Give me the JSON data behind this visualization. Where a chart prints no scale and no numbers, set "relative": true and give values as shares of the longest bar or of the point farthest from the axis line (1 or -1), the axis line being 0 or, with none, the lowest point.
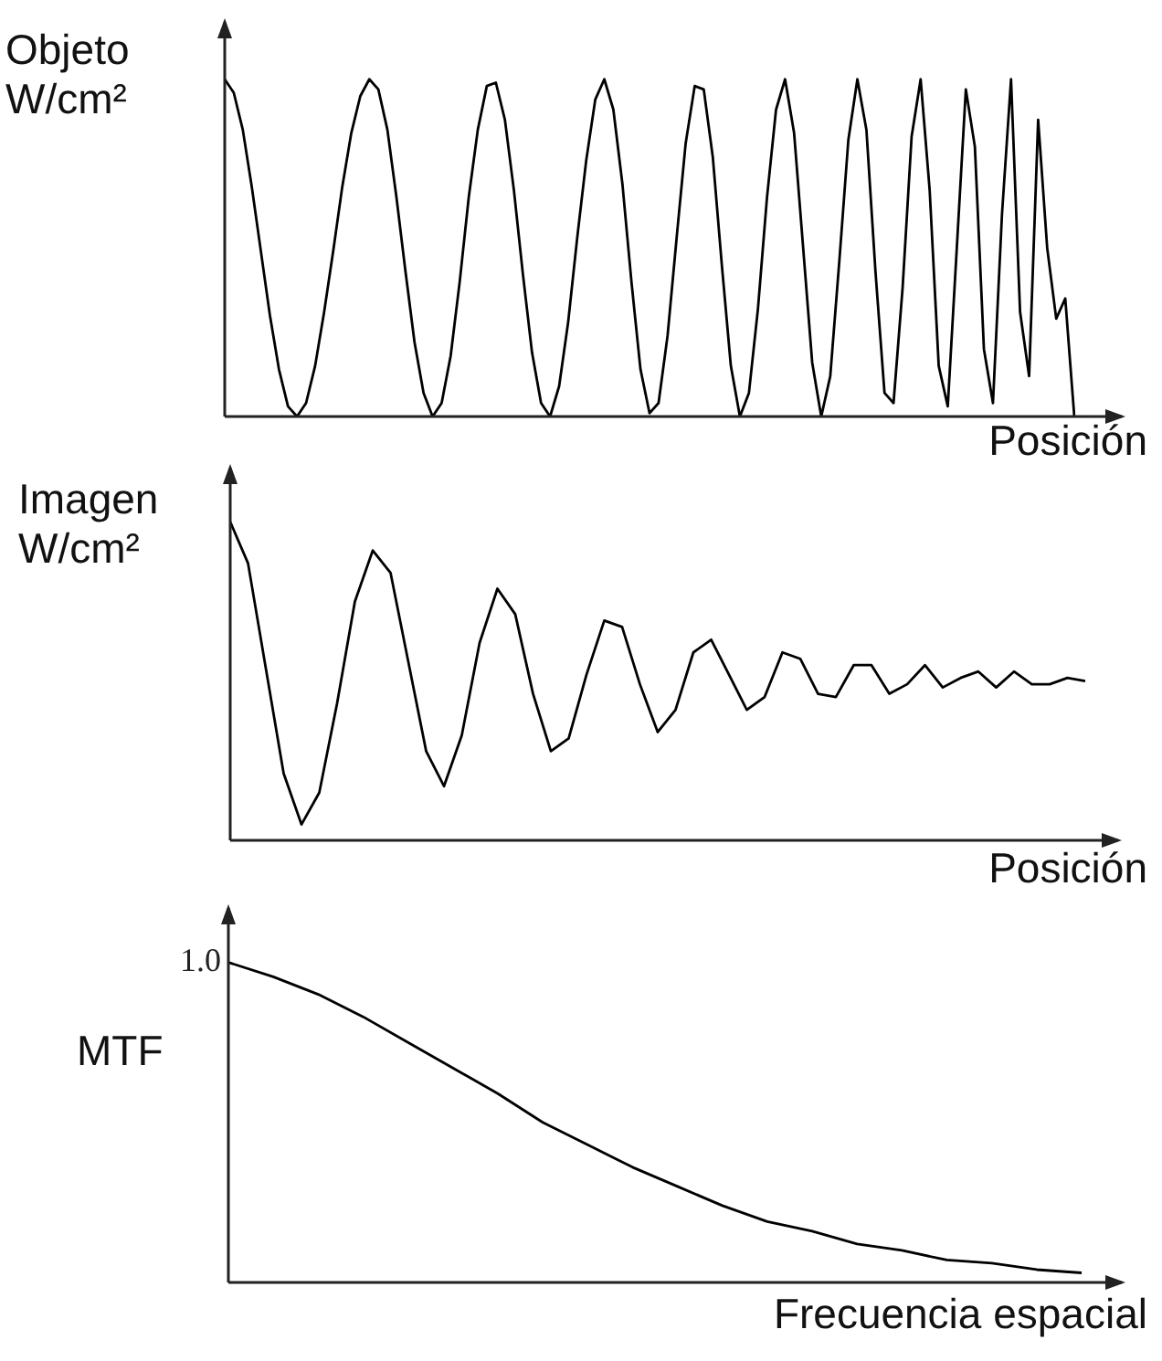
{
  "chart_data": [
    {
      "type": "line",
      "ylabel": "Objeto\nW/cm²",
      "xlabel": "Posición",
      "relative": true,
      "tick_labels": false,
      "marker": "none",
      "categories": [
        null,
        null,
        null,
        null,
        null,
        null,
        null,
        null,
        null,
        null,
        null,
        null,
        null,
        null,
        null,
        null,
        null,
        null,
        null,
        null,
        null,
        null,
        null,
        null,
        null,
        null,
        null,
        null,
        null,
        null,
        null,
        null,
        null,
        null,
        null,
        null,
        null,
        null,
        null,
        null,
        null,
        null,
        null,
        null,
        null,
        null,
        null,
        null,
        null,
        null,
        null,
        null,
        null,
        null,
        null,
        null,
        null,
        null,
        null,
        null,
        null,
        null,
        null,
        null,
        null,
        null,
        null,
        null,
        null,
        null,
        null,
        null,
        null,
        null,
        null,
        null,
        null,
        null,
        null,
        null,
        null,
        null,
        null,
        null,
        null,
        null,
        null,
        null,
        null,
        null,
        null,
        null,
        null,
        null,
        null
      ],
      "series": [
        {
          "color": "#000000",
          "values": [
            1,
            0.96,
            0.85,
            0.68,
            0.49,
            0.3,
            0.14,
            0.03,
            0,
            0.04,
            0.15,
            0.31,
            0.49,
            0.68,
            0.84,
            0.95,
            1,
            0.97,
            0.85,
            0.65,
            0.43,
            0.22,
            0.07,
            0,
            0.04,
            0.18,
            0.4,
            0.65,
            0.85,
            0.98,
            0.99,
            0.88,
            0.67,
            0.42,
            0.19,
            0.04,
            0,
            0.09,
            0.28,
            0.53,
            0.76,
            0.94,
            1,
            0.91,
            0.69,
            0.4,
            0.14,
            0.01,
            0.04,
            0.24,
            0.53,
            0.81,
            0.98,
            0.97,
            0.77,
            0.45,
            0.15,
            0,
            0.07,
            0.32,
            0.65,
            0.91,
            1,
            0.84,
            0.5,
            0.16,
            0,
            0.12,
            0.46,
            0.82,
            1,
            0.85,
            0.43,
            0.07,
            0.04,
            0.38,
            0.83,
            1,
            0.67,
            0.15,
            0.03,
            0.5,
            0.97,
            0.8,
            0.2,
            0.04,
            0.6,
            1,
            0.31,
            0.12,
            0.88,
            0.5,
            0.29,
            0.35,
            0
          ]
        }
      ]
    },
    {
      "type": "line",
      "ylabel": "Imagen\nW/cm²",
      "xlabel": "Posición",
      "relative": true,
      "tick_labels": false,
      "marker": "none",
      "categories": [
        null,
        null,
        null,
        null,
        null,
        null,
        null,
        null,
        null,
        null,
        null,
        null,
        null,
        null,
        null,
        null,
        null,
        null,
        null,
        null,
        null,
        null,
        null,
        null,
        null,
        null,
        null,
        null,
        null,
        null,
        null,
        null,
        null,
        null,
        null,
        null,
        null,
        null,
        null,
        null,
        null,
        null,
        null,
        null,
        null,
        null,
        null,
        null,
        null
      ],
      "series": [
        {
          "color": "#000000",
          "values": [
            1,
            0.87,
            0.54,
            0.21,
            0.05,
            0.15,
            0.43,
            0.75,
            0.91,
            0.84,
            0.56,
            0.28,
            0.17,
            0.33,
            0.62,
            0.79,
            0.71,
            0.46,
            0.28,
            0.32,
            0.52,
            0.69,
            0.67,
            0.49,
            0.34,
            0.41,
            0.59,
            0.63,
            0.52,
            0.41,
            0.45,
            0.59,
            0.57,
            0.46,
            0.45,
            0.55,
            0.55,
            0.46,
            0.49,
            0.55,
            0.48,
            0.51,
            0.53,
            0.48,
            0.53,
            0.49,
            0.49,
            0.51,
            0.5
          ]
        }
      ]
    },
    {
      "type": "line",
      "ylabel": "MTF",
      "xlabel": "Frecuencia espacial",
      "relative": true,
      "tick_labels": false,
      "marker": "none",
      "annotations": [
        "1.0"
      ],
      "categories": [
        null,
        null,
        null,
        null,
        null,
        null,
        null,
        null,
        null,
        null,
        null,
        null,
        null,
        null,
        null,
        null,
        null,
        null,
        null,
        null
      ],
      "series": [
        {
          "color": "#000000",
          "values": [
            1,
            0.955,
            0.9,
            0.83,
            0.75,
            0.67,
            0.59,
            0.5,
            0.43,
            0.36,
            0.3,
            0.24,
            0.19,
            0.16,
            0.12,
            0.1,
            0.07,
            0.06,
            0.04,
            0.03
          ]
        }
      ]
    }
  ]
}
